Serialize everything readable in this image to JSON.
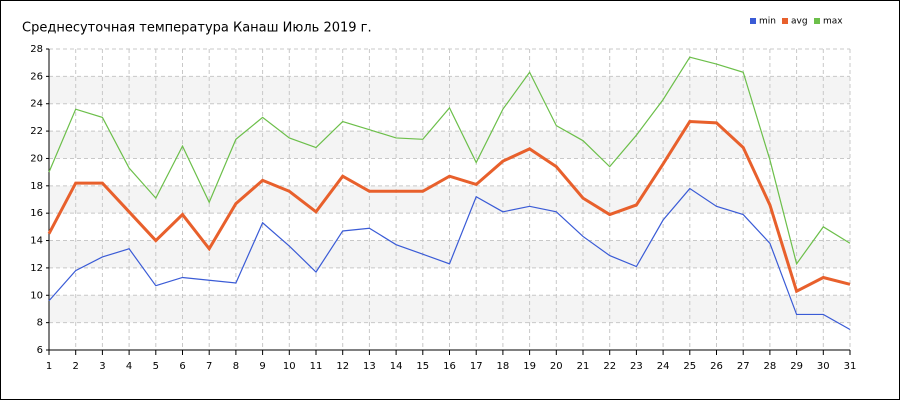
{
  "chart_data": {
    "type": "line",
    "title": "Среднесуточная температура Канаш  Июль 2019 г.",
    "x": [
      1,
      2,
      3,
      4,
      5,
      6,
      7,
      8,
      9,
      10,
      11,
      12,
      13,
      14,
      15,
      16,
      17,
      18,
      19,
      20,
      21,
      22,
      23,
      24,
      25,
      26,
      27,
      28,
      29,
      30,
      31
    ],
    "series": [
      {
        "name": "min",
        "color": "#3a5bd6",
        "values": [
          9.6,
          11.8,
          12.8,
          13.4,
          10.7,
          11.3,
          11.1,
          10.9,
          15.3,
          13.6,
          11.7,
          14.7,
          14.9,
          13.7,
          13.0,
          12.3,
          17.2,
          16.1,
          16.5,
          16.1,
          14.3,
          12.9,
          12.1,
          15.5,
          17.8,
          16.5,
          15.9,
          13.8,
          8.6,
          8.6,
          7.5
        ]
      },
      {
        "name": "avg",
        "color": "#e8602c",
        "values": [
          14.5,
          18.2,
          18.2,
          16.1,
          14.0,
          15.9,
          13.4,
          16.7,
          18.4,
          17.6,
          16.1,
          18.7,
          17.6,
          17.6,
          17.6,
          18.7,
          18.1,
          19.8,
          20.7,
          19.4,
          17.1,
          15.9,
          16.6,
          19.6,
          22.7,
          22.6,
          20.8,
          16.6,
          10.3,
          11.3,
          10.8
        ]
      },
      {
        "name": "max",
        "color": "#6cbf4a",
        "values": [
          19.0,
          23.6,
          23.0,
          19.3,
          17.1,
          20.9,
          16.8,
          21.4,
          23.0,
          21.5,
          20.8,
          22.7,
          22.1,
          21.5,
          21.4,
          23.7,
          19.7,
          23.6,
          26.3,
          22.4,
          21.3,
          19.4,
          21.7,
          24.3,
          27.4,
          26.9,
          26.3,
          19.9,
          12.3,
          15.0,
          13.8
        ]
      }
    ],
    "xlim": [
      1,
      31
    ],
    "xticks": [
      1,
      2,
      3,
      4,
      5,
      6,
      7,
      8,
      9,
      10,
      11,
      12,
      13,
      14,
      15,
      16,
      17,
      18,
      19,
      20,
      21,
      22,
      23,
      24,
      25,
      26,
      27,
      28,
      29,
      30,
      31
    ],
    "ylim": [
      6,
      28
    ],
    "yticks": [
      6,
      8,
      10,
      12,
      14,
      16,
      18,
      20,
      22,
      24,
      26,
      28
    ],
    "grid": true,
    "legend": "top-right"
  }
}
